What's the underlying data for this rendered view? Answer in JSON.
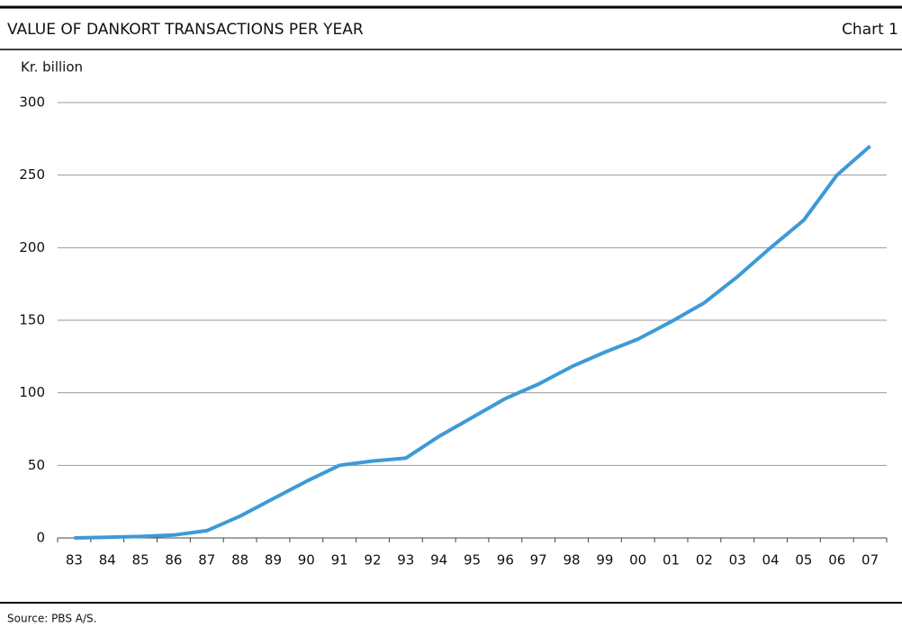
{
  "chart_data": {
    "type": "line",
    "title": "VALUE OF DANKORT TRANSACTIONS PER YEAR",
    "chart_label": "Chart 1",
    "y_label": "Kr. billion",
    "source": "Source:   PBS A/S.",
    "categories": [
      "83",
      "84",
      "85",
      "86",
      "87",
      "88",
      "89",
      "90",
      "91",
      "92",
      "93",
      "94",
      "95",
      "96",
      "97",
      "98",
      "99",
      "00",
      "01",
      "02",
      "03",
      "04",
      "05",
      "06",
      "07"
    ],
    "series": [
      {
        "name": "Value of Dankort transactions",
        "color": "#3d9ad6",
        "values": [
          0,
          0.5,
          1,
          2,
          5,
          15,
          27,
          39,
          50,
          53,
          55,
          70,
          83,
          96,
          106,
          118,
          128,
          137,
          149,
          162,
          180,
          200,
          219,
          250,
          270
        ]
      }
    ],
    "ylim": [
      0,
      300
    ],
    "yticks": [
      0,
      50,
      100,
      150,
      200,
      250,
      300
    ],
    "grid": true
  }
}
